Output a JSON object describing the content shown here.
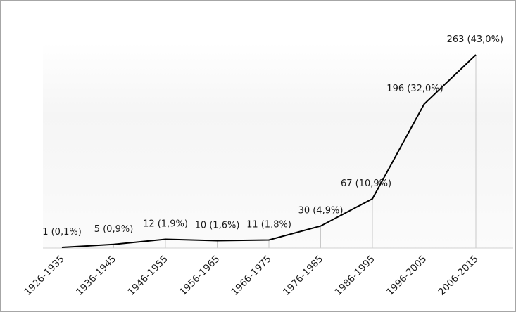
{
  "chart_data": {
    "type": "line",
    "categories": [
      "1926-1935",
      "1936-1945",
      "1946-1955",
      "1956-1965",
      "1966-1975",
      "1976-1985",
      "1986-1995",
      "1996-2005",
      "2006-2015"
    ],
    "values": [
      1,
      5,
      12,
      10,
      11,
      30,
      67,
      196,
      263
    ],
    "data_labels": [
      "1 (0,1%)",
      "5 (0,9%)",
      "12 (1,9%)",
      "10 (1,6%)",
      "11 (1,8%)",
      "30 (4,9%)",
      "67 (10,9%)",
      "196 (32,0%)",
      "263 (43,0%)"
    ],
    "title": "",
    "xlabel": "",
    "ylabel": "",
    "ylim": [
      0,
      263
    ],
    "grid": "vertical drop lines",
    "legend": "none",
    "line_color": "#000000",
    "dropline_color": "#c8c8c8"
  }
}
